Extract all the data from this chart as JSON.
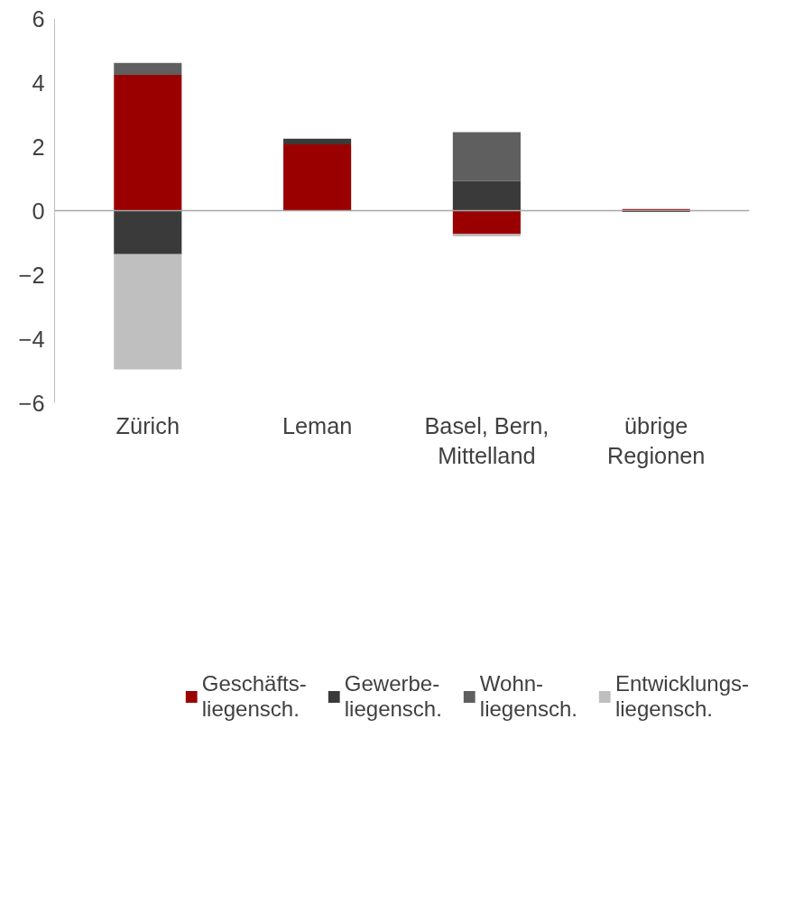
{
  "chart_data": {
    "type": "bar",
    "stacked": true,
    "categories": [
      "Zürich",
      "Leman",
      "Basel, Bern,\nMittelland",
      "übrige\nRegionen"
    ],
    "series": [
      {
        "name": "Geschäfts-\nliegensch.",
        "color": "#9b0000",
        "values": [
          4.24,
          2.07,
          -0.73,
          0.05
        ]
      },
      {
        "name": "Gewerbe-\nliegensch.",
        "color": "#3a3a3a",
        "values": [
          -1.36,
          0.18,
          0.92,
          -0.04
        ]
      },
      {
        "name": "Wohn-\nliegensch.",
        "color": "#5f5f5f",
        "values": [
          0.37,
          null,
          1.53,
          null
        ]
      },
      {
        "name": "Entwicklungs-\nliegensch.",
        "color": "#bfbfbf",
        "values": [
          -3.6,
          null,
          -0.07,
          null
        ]
      }
    ],
    "ylim": [
      -6,
      6
    ],
    "yticks": [
      -6,
      -4,
      -2,
      0,
      2,
      4,
      6
    ],
    "ref_lines": [
      {
        "axis": "y",
        "value": 0,
        "color": "#a6a6a6"
      }
    ],
    "grid": false,
    "legend": "bottom"
  }
}
